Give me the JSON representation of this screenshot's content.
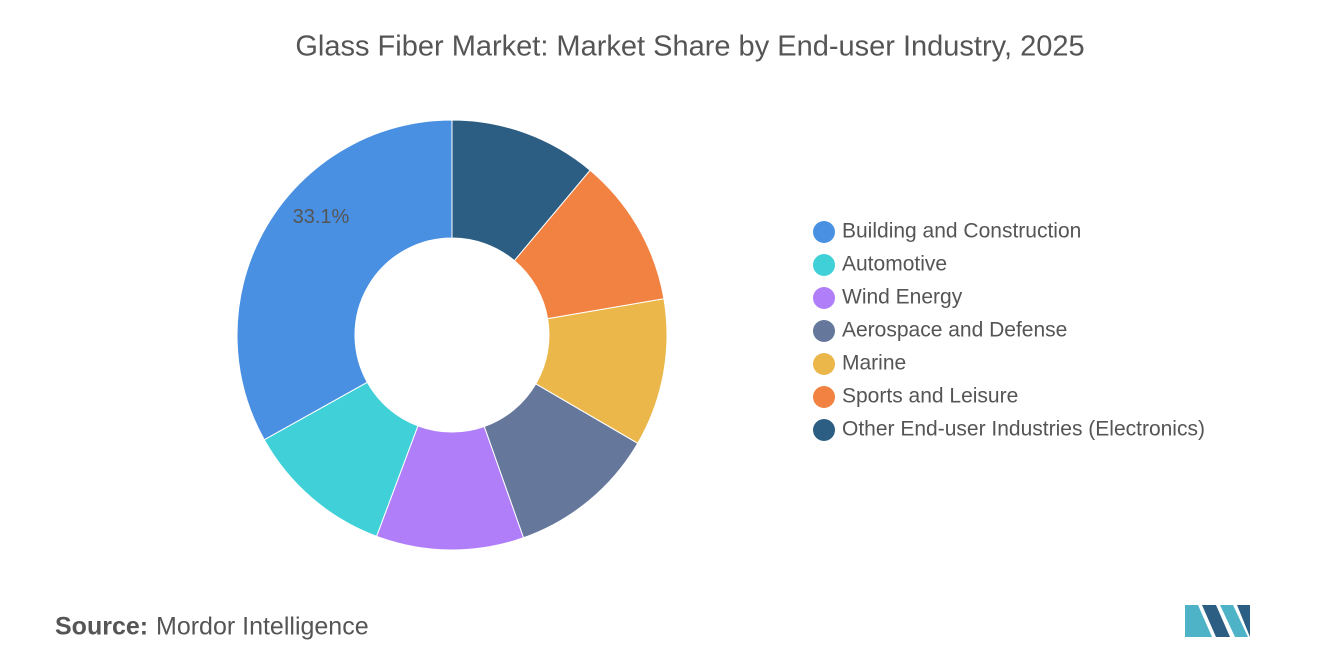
{
  "chart_data": {
    "type": "pie",
    "title": "Glass Fiber Market: Market Share by End-user Industry, 2025",
    "categories": [
      "Building and Construction",
      "Automotive",
      "Wind Energy",
      "Aerospace and Defense",
      "Marine",
      "Sports and Leisure",
      "Other End-user Industries (Electronics)"
    ],
    "values": [
      33.1,
      11.2,
      11.1,
      11.2,
      11.1,
      11.2,
      11.1
    ],
    "value_labels": [
      "33.1%",
      null,
      null,
      null,
      null,
      null,
      null
    ],
    "colors": [
      "#4a90e2",
      "#40d0d8",
      "#b07ef8",
      "#65779b",
      "#ebb74a",
      "#f28241",
      "#2c5d82"
    ],
    "donut": true,
    "legend": "right"
  },
  "source_label": "Source:",
  "source": "Mordor Intelligence"
}
